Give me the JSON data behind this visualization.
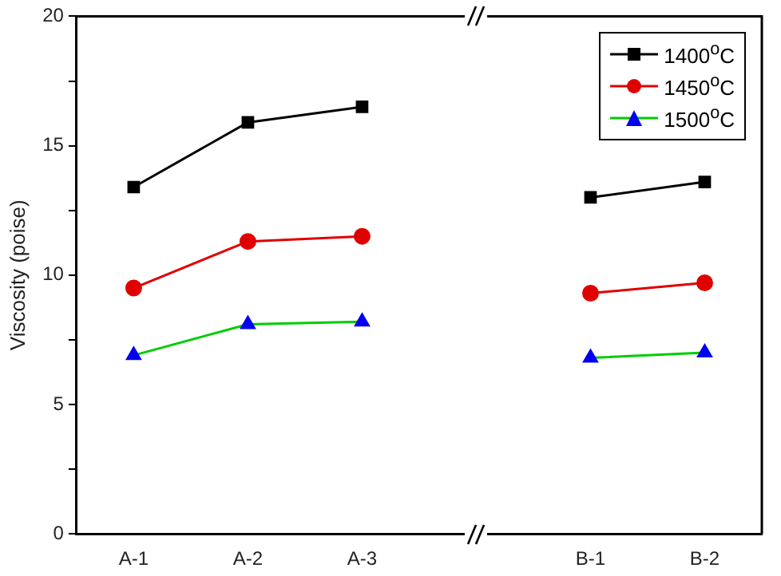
{
  "chart_data": {
    "type": "line",
    "ylabel": "Viscosity (poise)",
    "categories": [
      "A-1",
      "A-2",
      "A-3",
      null,
      "B-1",
      "B-2"
    ],
    "series": [
      {
        "name": "1400$^{o}$C",
        "color": "#000000",
        "marker": "square",
        "values": [
          13.4,
          15.9,
          16.5,
          null,
          13.0,
          13.6
        ]
      },
      {
        "name": "1450$^{o}$C",
        "color": "#e00000",
        "marker": "circle",
        "values": [
          9.5,
          11.3,
          11.5,
          null,
          9.3,
          9.7
        ]
      },
      {
        "name": "1500$^{o}$C",
        "color": "#00cc00",
        "marker": "triangle",
        "values": [
          6.9,
          8.1,
          8.2,
          null,
          6.8,
          7.0
        ]
      }
    ],
    "ylim": [
      0,
      20
    ],
    "yticks": [
      0,
      {
        "value": 2.5,
        "label": null
      },
      5,
      {
        "value": 7.5,
        "label": null
      },
      10,
      {
        "value": 12.5,
        "label": null
      },
      15,
      {
        "value": 17.5,
        "label": null
      },
      20
    ],
    "grid": false,
    "legend": "top right"
  }
}
